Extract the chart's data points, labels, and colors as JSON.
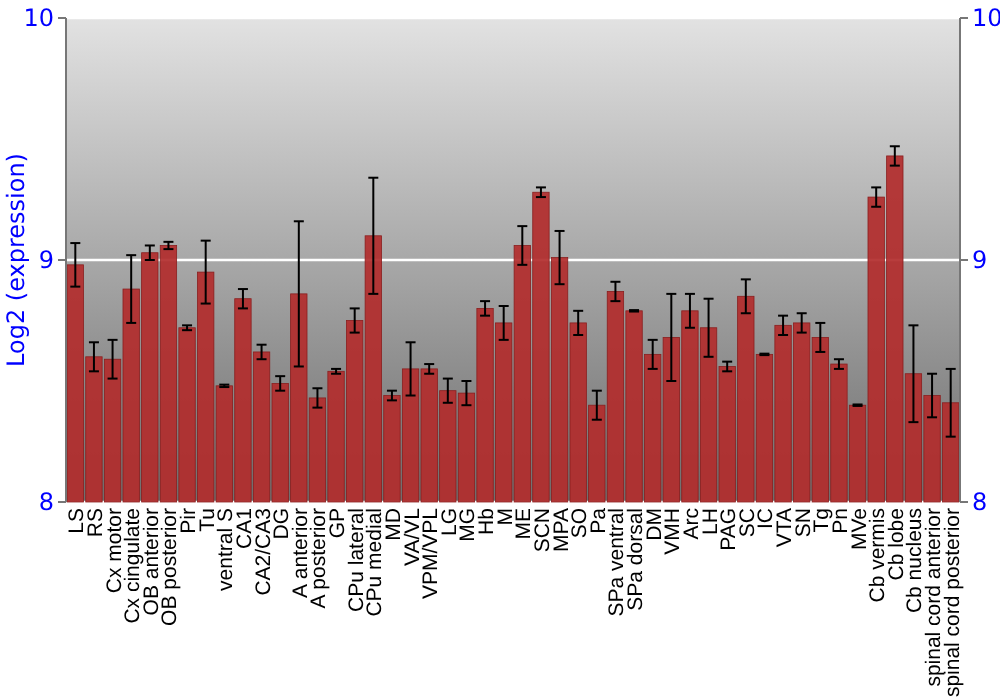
{
  "chart_data": {
    "type": "bar",
    "ylabel": "Log2 (expression)",
    "categories": [
      "LS",
      "RS",
      "Cx motor",
      "Cx cingulate",
      "OB anterior",
      "OB posterior",
      "Pir",
      "Tu",
      "ventral S",
      "CA1",
      "CA2/CA3",
      "DG",
      "A anterior",
      "A posterior",
      "GP",
      "CPu lateral",
      "CPu medial",
      "MD",
      "VA/VL",
      "VPM/VPL",
      "LG",
      "MG",
      "Hb",
      "M",
      "ME",
      "SCN",
      "MPA",
      "SO",
      "Pa",
      "SPa ventral",
      "SPa dorsal",
      "DM",
      "VMH",
      "Arc",
      "LH",
      "PAG",
      "SC",
      "IC",
      "VTA",
      "SN",
      "Tg",
      "Pn",
      "MVe",
      "Cb vermis",
      "Cb lobe",
      "Cb nucleus",
      "spinal cord anterior",
      "spinal cord posterior"
    ],
    "values": [
      8.98,
      8.6,
      8.59,
      8.88,
      9.03,
      9.06,
      8.72,
      8.95,
      8.48,
      8.84,
      8.62,
      8.49,
      8.86,
      8.43,
      8.54,
      8.75,
      9.1,
      8.44,
      8.55,
      8.55,
      8.46,
      8.45,
      8.8,
      8.74,
      9.06,
      9.28,
      9.01,
      8.74,
      8.4,
      8.87,
      8.79,
      8.61,
      8.68,
      8.79,
      8.72,
      8.56,
      8.85,
      8.61,
      8.73,
      8.74,
      8.68,
      8.57,
      8.4,
      9.26,
      9.43,
      8.53,
      8.44,
      8.41
    ],
    "errors": [
      0.09,
      0.06,
      0.08,
      0.14,
      0.03,
      0.015,
      0.01,
      0.13,
      0.005,
      0.04,
      0.03,
      0.03,
      0.3,
      0.04,
      0.01,
      0.05,
      0.24,
      0.02,
      0.11,
      0.02,
      0.05,
      0.05,
      0.03,
      0.07,
      0.08,
      0.02,
      0.11,
      0.05,
      0.06,
      0.04,
      0.003,
      0.06,
      0.18,
      0.07,
      0.12,
      0.02,
      0.07,
      0.003,
      0.04,
      0.04,
      0.06,
      0.02,
      0.003,
      0.04,
      0.04,
      0.2,
      0.09,
      0.14
    ],
    "color": "#b22c2c",
    "ylim": [
      8,
      10
    ],
    "yticks": [
      8,
      9,
      10
    ],
    "y2lim": [
      8,
      10
    ],
    "y2ticks": [
      8,
      9,
      10
    ],
    "grid": "y"
  }
}
